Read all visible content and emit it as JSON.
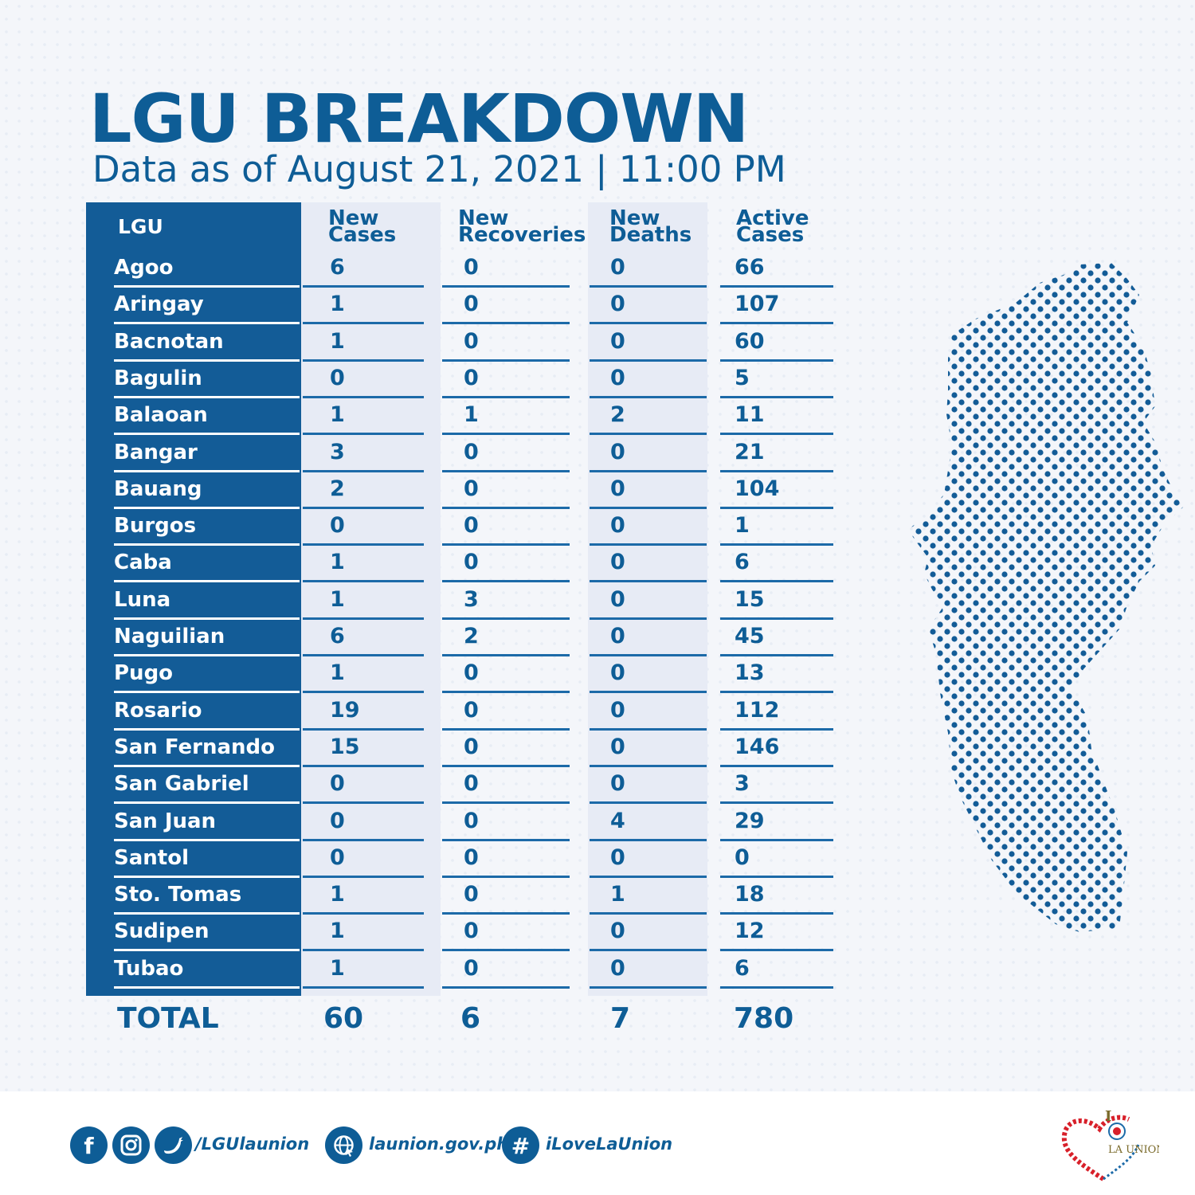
{
  "header": {
    "title": "LGU BREAKDOWN",
    "subtitle": "Data as of August 21, 2021 | 11:00 PM"
  },
  "table": {
    "columns": {
      "lgu": "LGU",
      "new_cases": "New\nCases",
      "new_recoveries": "New\nRecoveries",
      "new_deaths": "New\nDeaths",
      "active_cases": "Active\nCases"
    },
    "rows": [
      {
        "lgu": "Agoo",
        "new_cases": "6",
        "new_recoveries": "0",
        "new_deaths": "0",
        "active_cases": "66"
      },
      {
        "lgu": "Aringay",
        "new_cases": "1",
        "new_recoveries": "0",
        "new_deaths": "0",
        "active_cases": "107"
      },
      {
        "lgu": "Bacnotan",
        "new_cases": "1",
        "new_recoveries": "0",
        "new_deaths": "0",
        "active_cases": "60"
      },
      {
        "lgu": "Bagulin",
        "new_cases": "0",
        "new_recoveries": "0",
        "new_deaths": "0",
        "active_cases": "5"
      },
      {
        "lgu": "Balaoan",
        "new_cases": "1",
        "new_recoveries": "1",
        "new_deaths": "2",
        "active_cases": "11"
      },
      {
        "lgu": "Bangar",
        "new_cases": "3",
        "new_recoveries": "0",
        "new_deaths": "0",
        "active_cases": "21"
      },
      {
        "lgu": "Bauang",
        "new_cases": "2",
        "new_recoveries": "0",
        "new_deaths": "0",
        "active_cases": "104"
      },
      {
        "lgu": "Burgos",
        "new_cases": "0",
        "new_recoveries": "0",
        "new_deaths": "0",
        "active_cases": "1"
      },
      {
        "lgu": "Caba",
        "new_cases": "1",
        "new_recoveries": "0",
        "new_deaths": "0",
        "active_cases": "6"
      },
      {
        "lgu": "Luna",
        "new_cases": "1",
        "new_recoveries": "3",
        "new_deaths": "0",
        "active_cases": "15"
      },
      {
        "lgu": "Naguilian",
        "new_cases": "6",
        "new_recoveries": "2",
        "new_deaths": "0",
        "active_cases": "45"
      },
      {
        "lgu": "Pugo",
        "new_cases": "1",
        "new_recoveries": "0",
        "new_deaths": "0",
        "active_cases": "13"
      },
      {
        "lgu": "Rosario",
        "new_cases": "19",
        "new_recoveries": "0",
        "new_deaths": "0",
        "active_cases": "112"
      },
      {
        "lgu": "San Fernando",
        "new_cases": "15",
        "new_recoveries": "0",
        "new_deaths": "0",
        "active_cases": "146"
      },
      {
        "lgu": "San Gabriel",
        "new_cases": "0",
        "new_recoveries": "0",
        "new_deaths": "0",
        "active_cases": "3"
      },
      {
        "lgu": "San Juan",
        "new_cases": "0",
        "new_recoveries": "0",
        "new_deaths": "4",
        "active_cases": "29"
      },
      {
        "lgu": "Santol",
        "new_cases": "0",
        "new_recoveries": "0",
        "new_deaths": "0",
        "active_cases": "0"
      },
      {
        "lgu": "Sto. Tomas",
        "new_cases": "1",
        "new_recoveries": "0",
        "new_deaths": "1",
        "active_cases": "18"
      },
      {
        "lgu": "Sudipen",
        "new_cases": "1",
        "new_recoveries": "0",
        "new_deaths": "0",
        "active_cases": "12"
      },
      {
        "lgu": "Tubao",
        "new_cases": "1",
        "new_recoveries": "0",
        "new_deaths": "0",
        "active_cases": "6"
      }
    ],
    "total": {
      "label": "TOTAL",
      "new_cases": "60",
      "new_recoveries": "6",
      "new_deaths": "7",
      "active_cases": "780"
    }
  },
  "footer": {
    "social_handle": "/LGUlaunion",
    "website": "launion.gov.ph",
    "hashtag": "iLoveLaUnion",
    "icons": [
      "facebook-icon",
      "instagram-icon",
      "twitter-icon",
      "globe-icon",
      "hashtag-icon"
    ]
  },
  "logo": {
    "text_top": "I",
    "text_bottom": "LA UNION"
  },
  "colors": {
    "primary_blue": "#0e5d96",
    "lgu_column": "#135c97",
    "shaded_column": "#e7ebf5",
    "background": "#f4f6fa",
    "logo_red": "#d8202a"
  }
}
